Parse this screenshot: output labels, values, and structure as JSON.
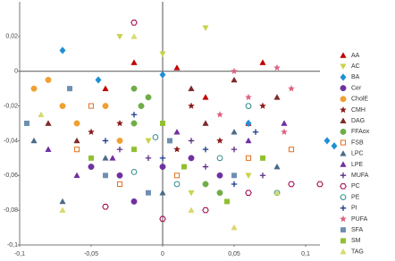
{
  "chart_data": {
    "type": "scatter",
    "xlim": [
      -0.1,
      0.11
    ],
    "ylim": [
      -0.1,
      0.04
    ],
    "xticks": [
      {
        "value": -0.1,
        "label": "-0,1"
      },
      {
        "value": -0.05,
        "label": "-0,05"
      },
      0,
      {
        "value": 0.05,
        "label": "0,05"
      },
      {
        "value": 0.1,
        "label": "0,1"
      }
    ],
    "yticks": [
      {
        "value": 0.02,
        "label": "0,02"
      },
      0,
      {
        "value": -0.02,
        "label": "-0,02"
      },
      {
        "value": -0.04,
        "label": "-0,04"
      },
      {
        "value": -0.06,
        "label": "-0,06"
      },
      {
        "value": -0.08,
        "label": "-0,08"
      },
      {
        "value": -0.1,
        "label": "-0,1"
      }
    ],
    "series": [
      {
        "name": "AA",
        "color": "#c00000",
        "marker": "triangle",
        "x": [
          -0.02,
          0.01,
          0.07,
          0.03,
          0.06,
          -0.04
        ],
        "y": [
          0.005,
          0.002,
          0.005,
          -0.015,
          -0.03,
          -0.01
        ]
      },
      {
        "name": "AC",
        "color": "#c8d44a",
        "marker": "down-triangle",
        "x": [
          -0.03,
          0.0,
          0.03,
          0.02,
          0.06,
          -0.01
        ],
        "y": [
          0.02,
          0.01,
          0.025,
          -0.07,
          -0.06,
          -0.04
        ]
      },
      {
        "name": "BA",
        "color": "#1f8fd6",
        "marker": "diamond",
        "x": [
          -0.07,
          0.0,
          0.06,
          0.115,
          0.12,
          -0.045
        ],
        "y": [
          0.012,
          -0.002,
          -0.03,
          -0.04,
          -0.043,
          -0.005
        ]
      },
      {
        "name": "Cer",
        "color": "#7030a0",
        "marker": "circle",
        "x": [
          -0.05,
          -0.03,
          0.0,
          0.02,
          -0.02,
          0.04
        ],
        "y": [
          -0.055,
          -0.06,
          -0.055,
          -0.05,
          -0.075,
          -0.06
        ]
      },
      {
        "name": "CholE",
        "color": "#f0a030",
        "marker": "circle",
        "x": [
          -0.09,
          -0.07,
          -0.06,
          -0.04,
          -0.08,
          -0.03
        ],
        "y": [
          -0.01,
          -0.02,
          -0.03,
          -0.02,
          -0.005,
          -0.04
        ]
      },
      {
        "name": "CMH",
        "color": "#8b1a1a",
        "marker": "star",
        "x": [
          -0.03,
          0.01,
          0.04,
          0.07,
          -0.05,
          0.02
        ],
        "y": [
          -0.03,
          -0.045,
          -0.04,
          -0.02,
          -0.035,
          -0.02
        ]
      },
      {
        "name": "DAG",
        "color": "#7f2a2a",
        "marker": "triangle",
        "x": [
          -0.08,
          0.02,
          0.05,
          0.08,
          0.03,
          -0.06
        ],
        "y": [
          -0.03,
          -0.01,
          -0.005,
          -0.015,
          -0.03,
          -0.04
        ]
      },
      {
        "name": "FFAox",
        "color": "#70ad47",
        "marker": "circle",
        "x": [
          -0.02,
          -0.015,
          -0.01,
          0.03,
          0.04,
          -0.02
        ],
        "y": [
          -0.01,
          -0.02,
          -0.015,
          -0.065,
          -0.07,
          -0.03
        ]
      },
      {
        "name": "FSB",
        "color": "#e07020",
        "marker": "square-open",
        "x": [
          -0.06,
          -0.03,
          0.01,
          0.06,
          0.09,
          -0.05
        ],
        "y": [
          -0.045,
          -0.065,
          -0.06,
          -0.05,
          -0.045,
          -0.02
        ]
      },
      {
        "name": "LPC",
        "color": "#4a6b8a",
        "marker": "triangle",
        "x": [
          -0.09,
          -0.07,
          0.0,
          0.05,
          0.08,
          -0.04
        ],
        "y": [
          -0.04,
          -0.075,
          -0.07,
          -0.035,
          -0.055,
          -0.05
        ]
      },
      {
        "name": "LPE",
        "color": "#7030a0",
        "marker": "triangle",
        "x": [
          -0.08,
          -0.06,
          -0.035,
          0.06,
          0.085,
          0.01
        ],
        "y": [
          -0.045,
          -0.06,
          -0.05,
          -0.04,
          -0.03,
          -0.035
        ]
      },
      {
        "name": "MUFA",
        "color": "#5b2c83",
        "marker": "plus",
        "x": [
          -0.01,
          0.02,
          0.05,
          0.07,
          -0.03,
          0.03
        ],
        "y": [
          -0.05,
          -0.04,
          -0.045,
          -0.06,
          -0.045,
          -0.055
        ]
      },
      {
        "name": "PC",
        "color": "#a0004a",
        "marker": "hexagon-open",
        "x": [
          -0.02,
          0.0,
          0.03,
          0.06,
          0.09,
          0.11,
          -0.04
        ],
        "y": [
          0.028,
          -0.085,
          -0.08,
          -0.07,
          -0.065,
          -0.065,
          -0.078
        ]
      },
      {
        "name": "PE",
        "color": "#2e8b8b",
        "marker": "circle-open",
        "x": [
          -0.02,
          0.01,
          0.04,
          0.08,
          -0.005,
          0.06
        ],
        "y": [
          -0.058,
          -0.065,
          -0.05,
          -0.07,
          -0.038,
          -0.02
        ]
      },
      {
        "name": "PI",
        "color": "#1a3a8a",
        "marker": "plus",
        "x": [
          -0.04,
          0.0,
          0.03,
          0.065,
          -0.02,
          0.05
        ],
        "y": [
          -0.04,
          -0.05,
          -0.045,
          -0.035,
          -0.025,
          -0.065
        ]
      },
      {
        "name": "PUFA",
        "color": "#e06080",
        "marker": "star",
        "x": [
          0.05,
          0.08,
          0.09,
          0.06,
          0.04,
          0.085
        ],
        "y": [
          0.0,
          0.002,
          -0.01,
          -0.015,
          -0.025,
          -0.035
        ]
      },
      {
        "name": "SFA",
        "color": "#6d8fb0",
        "marker": "square",
        "x": [
          -0.095,
          -0.065,
          -0.04,
          0.005,
          0.05,
          -0.01
        ],
        "y": [
          -0.03,
          -0.01,
          -0.06,
          -0.04,
          -0.06,
          -0.07
        ]
      },
      {
        "name": "SM",
        "color": "#90c030",
        "marker": "square",
        "x": [
          -0.05,
          -0.02,
          0.015,
          0.045,
          0.07,
          0.0
        ],
        "y": [
          -0.05,
          -0.045,
          -0.055,
          -0.075,
          -0.05,
          -0.03
        ]
      },
      {
        "name": "TAG",
        "color": "#d8d870",
        "marker": "triangle",
        "x": [
          -0.085,
          -0.07,
          0.02,
          0.05,
          0.08,
          -0.02
        ],
        "y": [
          -0.025,
          -0.08,
          -0.08,
          -0.09,
          -0.07,
          0.02
        ]
      }
    ]
  }
}
